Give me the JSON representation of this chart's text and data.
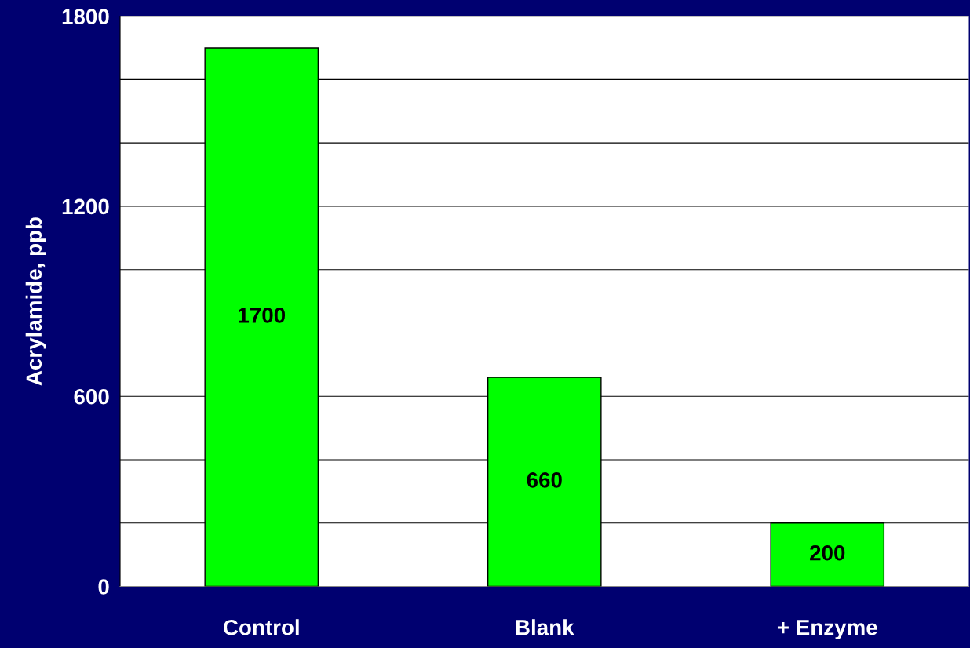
{
  "chart_data": {
    "type": "bar",
    "ylabel": "Acrylamide, ppb",
    "categories": [
      "Control",
      "Blank",
      "+ Enzyme"
    ],
    "values": [
      1700,
      660,
      200
    ],
    "color": "#00ff00",
    "ylim": [
      0,
      1800
    ],
    "yticks": [
      0,
      {
        "value": 200,
        "label": null
      },
      {
        "value": 400,
        "label": null
      },
      600,
      {
        "value": 800,
        "label": null
      },
      {
        "value": 1000,
        "label": null
      },
      1200,
      {
        "value": 1400,
        "label": null
      },
      {
        "value": 1600,
        "label": null
      },
      1800
    ],
    "grid": "y",
    "data_labels": true
  }
}
